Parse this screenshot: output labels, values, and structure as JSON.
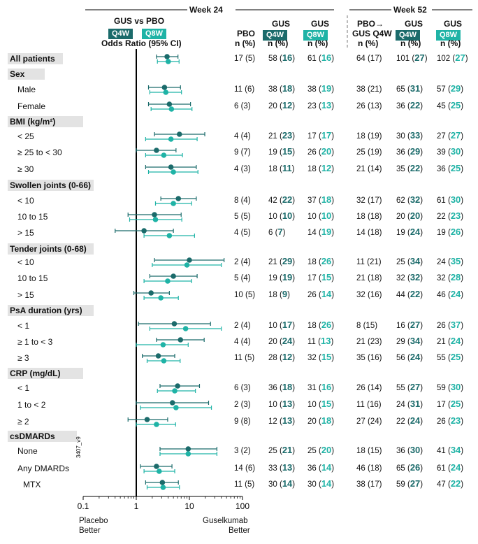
{
  "colors": {
    "q4w": "#1b6b6b",
    "q8w": "#1fb3a6",
    "axis": "#000000",
    "category_bg": "#e3e3e3"
  },
  "header": {
    "week24": "Week 24",
    "week52": "Week 52",
    "gus_vs_pbo": "GUS vs PBO",
    "q4w": "Q4W",
    "q8w": "Q8W",
    "or_label": "Odds Ratio (95% CI)",
    "pbo": "PBO",
    "gus": "GUS",
    "n_pct": "n (%)",
    "pbo_arrow": "PBO→",
    "gus_q4w": "GUS Q4W"
  },
  "footer": {
    "placebo_better_1": "Placebo",
    "placebo_better_2": "Better",
    "gus_better_1": "Guselkumab",
    "gus_better_2": "Better",
    "code": "3407_v9"
  },
  "chart_data": {
    "type": "forest",
    "xscale": "log",
    "xlim": [
      0.1,
      100
    ],
    "xticks": [
      "0.1",
      "1",
      "10",
      "100"
    ],
    "reference_line": 1,
    "rows": [
      {
        "kind": "category",
        "label": "All patients",
        "or_q4w": [
          3.8,
          2.4,
          6.1
        ],
        "or_q8w": [
          4.0,
          2.5,
          6.4
        ],
        "w24_pbo": "17 (5)",
        "w24_q4w": "58",
        "w24_q4w_pct": "16",
        "w24_q8w": "61",
        "w24_q8w_pct": "16",
        "w52_pbo": "64 (17)",
        "w52_q4w": "101",
        "w52_q4w_pct": "27",
        "w52_q8w": "102",
        "w52_q8w_pct": "27"
      },
      {
        "kind": "category",
        "label": "Sex"
      },
      {
        "kind": "sub",
        "label": "Male",
        "or_q4w": [
          3.4,
          1.7,
          6.8
        ],
        "or_q8w": [
          3.6,
          1.8,
          7.1
        ],
        "w24_pbo": "11 (6)",
        "w24_q4w": "38",
        "w24_q4w_pct": "18",
        "w24_q8w": "38",
        "w24_q8w_pct": "19",
        "w52_pbo": "38 (21)",
        "w52_q4w": "65",
        "w52_q4w_pct": "31",
        "w52_q8w": "57",
        "w52_q8w_pct": "29"
      },
      {
        "kind": "sub",
        "label": "Female",
        "or_q4w": [
          4.2,
          1.7,
          10.5
        ],
        "or_q8w": [
          4.6,
          1.9,
          11.2
        ],
        "w24_pbo": "6 (3)",
        "w24_q4w": "20",
        "w24_q4w_pct": "12",
        "w24_q8w": "23",
        "w24_q8w_pct": "13",
        "w52_pbo": "26 (13)",
        "w52_q4w": "36",
        "w52_q4w_pct": "22",
        "w52_q8w": "45",
        "w52_q8w_pct": "25"
      },
      {
        "kind": "category",
        "label": "BMI (kg/m²)"
      },
      {
        "kind": "sub",
        "label": "< 25",
        "or_q4w": [
          6.5,
          2.2,
          19.5
        ],
        "or_q8w": [
          4.5,
          1.5,
          14.0
        ],
        "w24_pbo": "4 (4)",
        "w24_q4w": "21",
        "w24_q4w_pct": "23",
        "w24_q8w": "17",
        "w24_q8w_pct": "17",
        "w52_pbo": "18 (19)",
        "w52_q4w": "30",
        "w52_q4w_pct": "33",
        "w52_q8w": "27",
        "w52_q8w_pct": "27"
      },
      {
        "kind": "sub",
        "label": "≥ 25 to < 30",
        "or_q4w": [
          2.4,
          1.0,
          5.6
        ],
        "or_q8w": [
          3.3,
          1.5,
          7.4
        ],
        "w24_pbo": "9 (7)",
        "w24_q4w": "19",
        "w24_q4w_pct": "15",
        "w24_q8w": "26",
        "w24_q8w_pct": "20",
        "w52_pbo": "25 (19)",
        "w52_q4w": "36",
        "w52_q4w_pct": "29",
        "w52_q8w": "39",
        "w52_q8w_pct": "30"
      },
      {
        "kind": "sub",
        "label": "≥ 30",
        "or_q4w": [
          4.5,
          1.5,
          13.5
        ],
        "or_q8w": [
          5.0,
          1.7,
          14.5
        ],
        "w24_pbo": "4 (3)",
        "w24_q4w": "18",
        "w24_q4w_pct": "11",
        "w24_q8w": "18",
        "w24_q8w_pct": "12",
        "w52_pbo": "21 (14)",
        "w52_q4w": "35",
        "w52_q4w_pct": "22",
        "w52_q8w": "36",
        "w52_q8w_pct": "25"
      },
      {
        "kind": "category",
        "label": "Swollen joints (0-66)"
      },
      {
        "kind": "sub",
        "label": "< 10",
        "or_q4w": [
          6.2,
          2.9,
          13.5
        ],
        "or_q8w": [
          5.0,
          2.3,
          11.0
        ],
        "w24_pbo": "8 (4)",
        "w24_q4w": "42",
        "w24_q4w_pct": "22",
        "w24_q8w": "37",
        "w24_q8w_pct": "18",
        "w52_pbo": "32 (17)",
        "w52_q4w": "62",
        "w52_q4w_pct": "32",
        "w52_q8w": "61",
        "w52_q8w_pct": "30"
      },
      {
        "kind": "sub",
        "label": "10 to 15",
        "or_q4w": [
          2.2,
          0.7,
          7.0
        ],
        "or_q8w": [
          2.3,
          0.75,
          7.2
        ],
        "w24_pbo": "5 (5)",
        "w24_q4w": "10",
        "w24_q4w_pct": "10",
        "w24_q8w": "10",
        "w24_q8w_pct": "10",
        "w52_pbo": "18 (18)",
        "w52_q4w": "20",
        "w52_q4w_pct": "20",
        "w52_q8w": "22",
        "w52_q8w_pct": "23"
      },
      {
        "kind": "sub",
        "label": "> 15",
        "or_q4w": [
          1.4,
          0.4,
          5.0
        ],
        "or_q8w": [
          4.2,
          1.4,
          12.5
        ],
        "w24_pbo": "4 (5)",
        "w24_q4w": "6",
        "w24_q4w_pct": "7",
        "w24_q8w": "14",
        "w24_q8w_pct": "19",
        "w52_pbo": "14 (18)",
        "w52_q4w": "19",
        "w52_q4w_pct": "24",
        "w52_q8w": "19",
        "w52_q8w_pct": "26"
      },
      {
        "kind": "category",
        "label": "Tender joints (0-68)"
      },
      {
        "kind": "sub",
        "label": "< 10",
        "or_q4w": [
          10.0,
          2.2,
          45.0
        ],
        "or_q8w": [
          9.0,
          2.0,
          40.0
        ],
        "w24_pbo": "2 (4)",
        "w24_q4w": "21",
        "w24_q4w_pct": "29",
        "w24_q8w": "18",
        "w24_q8w_pct": "26",
        "w52_pbo": "11 (21)",
        "w52_q4w": "25",
        "w52_q4w_pct": "34",
        "w52_q8w": "24",
        "w52_q8w_pct": "35"
      },
      {
        "kind": "sub",
        "label": "10 to 15",
        "or_q4w": [
          5.0,
          1.8,
          14.0
        ],
        "or_q8w": [
          3.9,
          1.4,
          11.0
        ],
        "w24_pbo": "5 (4)",
        "w24_q4w": "19",
        "w24_q4w_pct": "19",
        "w24_q8w": "17",
        "w24_q8w_pct": "15",
        "w52_pbo": "21 (18)",
        "w52_q4w": "32",
        "w52_q4w_pct": "32",
        "w52_q8w": "32",
        "w52_q8w_pct": "28"
      },
      {
        "kind": "sub",
        "label": "> 15",
        "or_q4w": [
          1.9,
          0.9,
          4.2
        ],
        "or_q8w": [
          2.9,
          1.4,
          6.2
        ],
        "w24_pbo": "10 (5)",
        "w24_q4w": "18",
        "w24_q4w_pct": "9",
        "w24_q8w": "26",
        "w24_q8w_pct": "14",
        "w52_pbo": "32 (16)",
        "w52_q4w": "44",
        "w52_q4w_pct": "22",
        "w52_q8w": "46",
        "w52_q8w_pct": "24"
      },
      {
        "kind": "category",
        "label": "PsA duration (yrs)"
      },
      {
        "kind": "sub",
        "label": "< 1",
        "or_q4w": [
          5.2,
          1.1,
          25.0
        ],
        "or_q8w": [
          8.5,
          1.8,
          40.0
        ],
        "w24_pbo": "2 (4)",
        "w24_q4w": "10",
        "w24_q4w_pct": "17",
        "w24_q8w": "18",
        "w24_q8w_pct": "26",
        "w52_pbo": "8 (15)",
        "w52_q4w": "16",
        "w52_q4w_pct": "27",
        "w52_q8w": "26",
        "w52_q8w_pct": "37"
      },
      {
        "kind": "sub",
        "label": "≥ 1 to < 3",
        "or_q4w": [
          6.8,
          2.4,
          19.0
        ],
        "or_q8w": [
          3.2,
          1.0,
          9.5
        ],
        "w24_pbo": "4 (4)",
        "w24_q4w": "20",
        "w24_q4w_pct": "24",
        "w24_q8w": "11",
        "w24_q8w_pct": "13",
        "w52_pbo": "21 (23)",
        "w52_q4w": "29",
        "w52_q4w_pct": "34",
        "w52_q8w": "21",
        "w52_q8w_pct": "24"
      },
      {
        "kind": "sub",
        "label": "≥ 3",
        "or_q4w": [
          2.6,
          1.3,
          5.3
        ],
        "or_q8w": [
          3.3,
          1.6,
          6.7
        ],
        "w24_pbo": "11 (5)",
        "w24_q4w": "28",
        "w24_q4w_pct": "12",
        "w24_q8w": "32",
        "w24_q8w_pct": "15",
        "w52_pbo": "35 (16)",
        "w52_q4w": "56",
        "w52_q4w_pct": "24",
        "w52_q8w": "55",
        "w52_q8w_pct": "25"
      },
      {
        "kind": "category",
        "label": "CRP (mg/dL)"
      },
      {
        "kind": "sub",
        "label": "< 1",
        "or_q4w": [
          6.0,
          2.8,
          15.5
        ],
        "or_q8w": [
          5.3,
          2.5,
          13.0
        ],
        "w24_pbo": "6 (3)",
        "w24_q4w": "36",
        "w24_q4w_pct": "18",
        "w24_q8w": "31",
        "w24_q8w_pct": "16",
        "w52_pbo": "26 (14)",
        "w52_q4w": "55",
        "w52_q4w_pct": "27",
        "w52_q8w": "59",
        "w52_q8w_pct": "30"
      },
      {
        "kind": "sub",
        "label": "1 to < 2",
        "or_q4w": [
          4.8,
          1.0,
          23.0
        ],
        "or_q8w": [
          5.6,
          1.2,
          26.0
        ],
        "w24_pbo": "2 (3)",
        "w24_q4w": "10",
        "w24_q4w_pct": "13",
        "w24_q8w": "10",
        "w24_q8w_pct": "15",
        "w52_pbo": "11 (16)",
        "w52_q4w": "24",
        "w52_q4w_pct": "31",
        "w52_q8w": "17",
        "w52_q8w_pct": "25"
      },
      {
        "kind": "sub",
        "label": "≥ 2",
        "or_q4w": [
          1.6,
          0.7,
          3.9
        ],
        "or_q8w": [
          2.4,
          1.0,
          5.5
        ],
        "w24_pbo": "9 (8)",
        "w24_q4w": "12",
        "w24_q4w_pct": "13",
        "w24_q8w": "20",
        "w24_q8w_pct": "18",
        "w52_pbo": "27 (24)",
        "w52_q4w": "22",
        "w52_q4w_pct": "24",
        "w52_q8w": "26",
        "w52_q8w_pct": "23"
      },
      {
        "kind": "category",
        "label": "csDMARDs"
      },
      {
        "kind": "sub",
        "label": "None",
        "or_q4w": [
          9.5,
          2.8,
          33.0
        ],
        "or_q8w": [
          9.5,
          2.8,
          33.0
        ],
        "w24_pbo": "3 (2)",
        "w24_q4w": "25",
        "w24_q4w_pct": "21",
        "w24_q8w": "25",
        "w24_q8w_pct": "20",
        "w52_pbo": "18 (15)",
        "w52_q4w": "36",
        "w52_q4w_pct": "30",
        "w52_q8w": "41",
        "w52_q8w_pct": "34"
      },
      {
        "kind": "sub",
        "label": "Any DMARDs",
        "or_q4w": [
          2.4,
          1.2,
          4.7
        ],
        "or_q8w": [
          2.7,
          1.4,
          5.3
        ],
        "w24_pbo": "14 (6)",
        "w24_q4w": "33",
        "w24_q4w_pct": "13",
        "w24_q8w": "36",
        "w24_q8w_pct": "14",
        "w52_pbo": "46 (18)",
        "w52_q4w": "65",
        "w52_q4w_pct": "26",
        "w52_q8w": "61",
        "w52_q8w_pct": "24"
      },
      {
        "kind": "sub",
        "label": "MTX",
        "or_q4w": [
          3.1,
          1.5,
          6.2
        ],
        "or_q8w": [
          3.2,
          1.6,
          6.5
        ],
        "w24_pbo": "11 (5)",
        "w24_q4w": "30",
        "w24_q4w_pct": "14",
        "w24_q8w": "30",
        "w24_q8w_pct": "14",
        "w52_pbo": "38 (17)",
        "w52_q4w": "59",
        "w52_q4w_pct": "27",
        "w52_q8w": "47",
        "w52_q8w_pct": "22"
      }
    ]
  }
}
